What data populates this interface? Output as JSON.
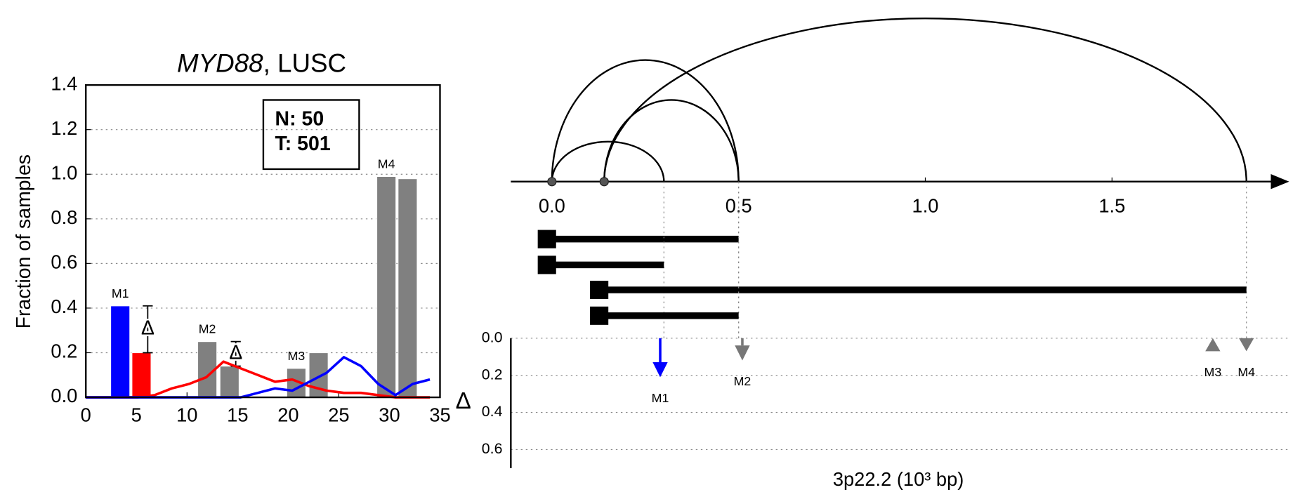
{
  "chart_data": [
    {
      "type": "bar_line",
      "title": [
        "MYD88",
        ", LUSC"
      ],
      "ylabel": "Fraction of samples",
      "xlim": [
        0,
        35
      ],
      "ylim": [
        0,
        1.4
      ],
      "xticks": [
        0,
        5,
        10,
        15,
        20,
        25,
        30,
        35
      ],
      "yticks": [
        {
          "value": 0,
          "label": "0.0"
        },
        {
          "value": 0.2,
          "label": "0.2"
        },
        {
          "value": 0.4,
          "label": "0.4"
        },
        {
          "value": 0.6,
          "label": "0.6"
        },
        {
          "value": 0.8,
          "label": "0.8"
        },
        {
          "value": 1.0,
          "label": "1.0"
        },
        {
          "value": 1.2,
          "label": "1.2"
        },
        {
          "value": 1.4,
          "label": "1.4"
        }
      ],
      "grid": true,
      "legend_box": [
        "N: 50",
        "T: 501"
      ],
      "delta_label": "Δ",
      "bars": {
        "x": [
          3.4,
          5.5,
          12.0,
          14.2,
          20.8,
          23.0,
          29.7,
          31.8
        ],
        "values": [
          0.41,
          0.2,
          0.25,
          0.14,
          0.13,
          0.2,
          0.99,
          0.98
        ],
        "colors": [
          "#0000ff",
          "#ff0000",
          "#808080",
          "#808080",
          "#808080",
          "#808080",
          "#808080",
          "#808080"
        ],
        "labels": [
          "M1",
          null,
          "M2",
          null,
          "M3",
          null,
          "M4",
          null
        ]
      },
      "x": [
        0,
        1.7,
        3.4,
        5.1,
        6.8,
        8.5,
        10.2,
        11.9,
        13.6,
        15.3,
        17,
        18.7,
        20.4,
        22.1,
        23.8,
        25.5,
        27.2,
        28.9,
        30.6,
        32.3,
        34
      ],
      "series": [
        {
          "color": "#ff0000",
          "values": [
            0,
            0,
            0,
            0,
            0.01,
            0.04,
            0.06,
            0.09,
            0.16,
            0.13,
            0.1,
            0.07,
            0.08,
            0.05,
            0.03,
            0.02,
            0.02,
            0.01,
            0,
            0,
            0
          ]
        },
        {
          "color": "#0000ff",
          "values": [
            0,
            0,
            0,
            0,
            0,
            0,
            0,
            0,
            0,
            0,
            0.02,
            0.04,
            0.03,
            0.07,
            0.11,
            0.18,
            0.14,
            0.06,
            0.01,
            0.06,
            0.08
          ]
        }
      ]
    },
    {
      "type": "arc",
      "xlabel": "3p22.2 (10³ bp)",
      "xlim": [
        -0.11,
        1.97
      ],
      "xticks": [
        {
          "value": 0,
          "label": "0.0"
        },
        {
          "value": 0.5,
          "label": "0.5"
        },
        {
          "value": 1.0,
          "label": "1.0"
        },
        {
          "value": 1.5,
          "label": "1.5"
        }
      ],
      "segments": {
        "start": [
          0,
          0,
          0.14,
          0.14
        ],
        "end": [
          0.5,
          0.3,
          1.86,
          0.5
        ]
      },
      "ylabel": "Δ",
      "ylim": [
        0,
        0.7
      ],
      "yticks": [
        {
          "value": 0,
          "label": "0.0"
        },
        {
          "value": 0.2,
          "label": "0.2"
        },
        {
          "value": 0.4,
          "label": "0.4"
        },
        {
          "value": 0.6,
          "label": "0.6"
        }
      ],
      "grid": true,
      "markers": {
        "names": [
          "M1",
          "M2",
          "M3",
          "M4"
        ],
        "x": [
          0.29,
          0.51,
          1.77,
          1.86
        ],
        "delta": [
          0.21,
          0.12,
          0.07,
          0.07
        ],
        "colors": [
          "#0000ff",
          "#777777",
          "#777777",
          "#777777"
        ],
        "direction": [
          "down",
          "down",
          "up",
          "down"
        ]
      }
    }
  ]
}
